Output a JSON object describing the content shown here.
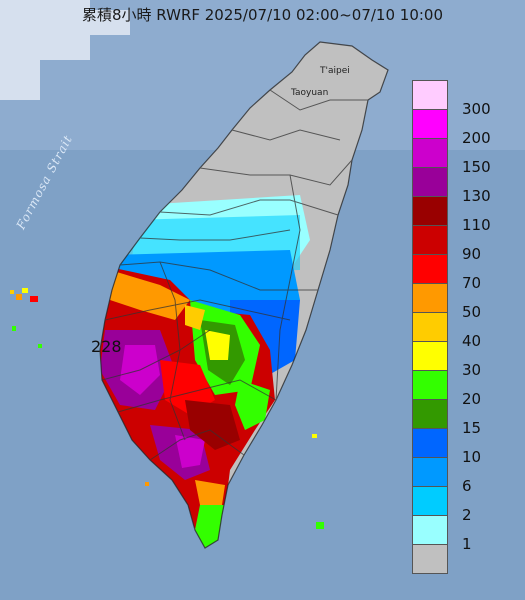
{
  "title": "累積8小時 RWRF 2025/07/10 02:00~07/10 10:00",
  "strait_label": "Formosa Strait",
  "cities": {
    "taipei": "T'aipei",
    "taoyuan": "Taoyuan"
  },
  "max_value": "228",
  "legend": {
    "items": [
      {
        "label": "300",
        "color": "#ffccff"
      },
      {
        "label": "200",
        "color": "#ff00ff"
      },
      {
        "label": "150",
        "color": "#cc00cc"
      },
      {
        "label": "130",
        "color": "#990099"
      },
      {
        "label": "110",
        "color": "#990000"
      },
      {
        "label": "90",
        "color": "#cc0000"
      },
      {
        "label": "70",
        "color": "#ff0000"
      },
      {
        "label": "50",
        "color": "#ff9900"
      },
      {
        "label": "40",
        "color": "#ffcc00"
      },
      {
        "label": "30",
        "color": "#ffff00"
      },
      {
        "label": "20",
        "color": "#33ff00"
      },
      {
        "label": "15",
        "color": "#339900"
      },
      {
        "label": "10",
        "color": "#0066ff"
      },
      {
        "label": "6",
        "color": "#0099ff"
      },
      {
        "label": "2",
        "color": "#00ccff"
      },
      {
        "label": "1",
        "color": "#99ffff"
      },
      {
        "label": "",
        "color": "#c0c0c0"
      }
    ]
  }
}
